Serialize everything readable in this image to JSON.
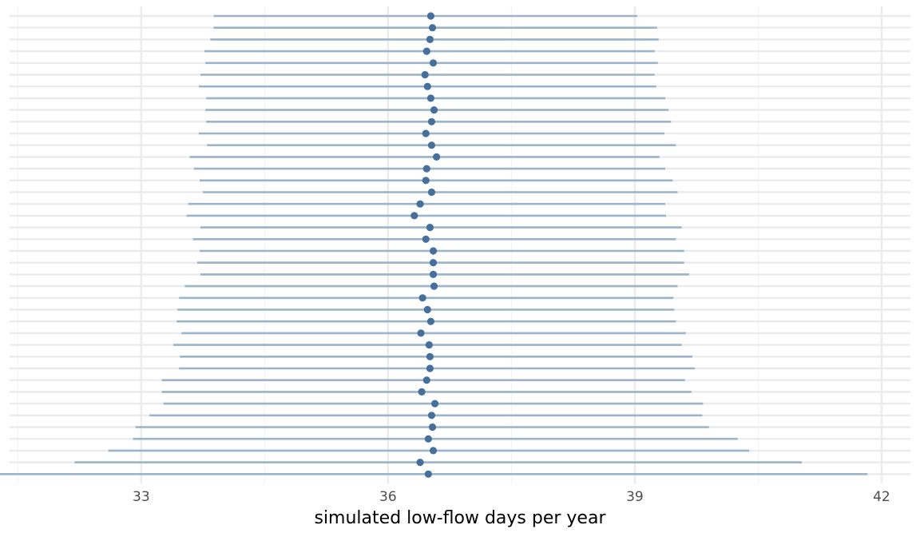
{
  "chart_data": {
    "type": "scatter",
    "subtype": "point-range",
    "title": "",
    "xlabel": "simulated low-flow days per year",
    "ylabel": "",
    "xlim": [
      31.4,
      42.35
    ],
    "x_major_ticks": [
      33,
      36,
      39,
      42
    ],
    "x_minor_ticks": [
      31.5,
      34.5,
      37.5,
      40.5
    ],
    "x_tick_labels": [
      "33",
      "36",
      "39",
      "42"
    ],
    "grid": true,
    "legend": "none",
    "colors": {
      "point": "#46709b",
      "interval": "#9bb4c9",
      "grid_major": "#ebebeb",
      "grid_minor": "#f4f4f4"
    },
    "rows": [
      {
        "mean": 36.52,
        "low": 33.88,
        "high": 39.03
      },
      {
        "mean": 36.54,
        "low": 33.88,
        "high": 39.27
      },
      {
        "mean": 36.51,
        "low": 33.84,
        "high": 39.29
      },
      {
        "mean": 36.47,
        "low": 33.77,
        "high": 39.24
      },
      {
        "mean": 36.55,
        "low": 33.78,
        "high": 39.28
      },
      {
        "mean": 36.45,
        "low": 33.72,
        "high": 39.24
      },
      {
        "mean": 36.48,
        "low": 33.7,
        "high": 39.26
      },
      {
        "mean": 36.52,
        "low": 33.79,
        "high": 39.37
      },
      {
        "mean": 36.56,
        "low": 33.78,
        "high": 39.41
      },
      {
        "mean": 36.53,
        "low": 33.79,
        "high": 39.44
      },
      {
        "mean": 36.46,
        "low": 33.7,
        "high": 39.36
      },
      {
        "mean": 36.53,
        "low": 33.8,
        "high": 39.5
      },
      {
        "mean": 36.59,
        "low": 33.59,
        "high": 39.3
      },
      {
        "mean": 36.47,
        "low": 33.64,
        "high": 39.37
      },
      {
        "mean": 36.46,
        "low": 33.71,
        "high": 39.46
      },
      {
        "mean": 36.53,
        "low": 33.75,
        "high": 39.52
      },
      {
        "mean": 36.39,
        "low": 33.57,
        "high": 39.37
      },
      {
        "mean": 36.32,
        "low": 33.55,
        "high": 39.38
      },
      {
        "mean": 36.51,
        "low": 33.72,
        "high": 39.57
      },
      {
        "mean": 36.46,
        "low": 33.63,
        "high": 39.5
      },
      {
        "mean": 36.55,
        "low": 33.71,
        "high": 39.6
      },
      {
        "mean": 36.55,
        "low": 33.68,
        "high": 39.6
      },
      {
        "mean": 36.55,
        "low": 33.72,
        "high": 39.66
      },
      {
        "mean": 36.56,
        "low": 33.53,
        "high": 39.52
      },
      {
        "mean": 36.42,
        "low": 33.46,
        "high": 39.47
      },
      {
        "mean": 36.48,
        "low": 33.44,
        "high": 39.48
      },
      {
        "mean": 36.52,
        "low": 33.43,
        "high": 39.5
      },
      {
        "mean": 36.4,
        "low": 33.49,
        "high": 39.62
      },
      {
        "mean": 36.5,
        "low": 33.39,
        "high": 39.57
      },
      {
        "mean": 36.51,
        "low": 33.47,
        "high": 39.7
      },
      {
        "mean": 36.51,
        "low": 33.46,
        "high": 39.73
      },
      {
        "mean": 36.47,
        "low": 33.25,
        "high": 39.61
      },
      {
        "mean": 36.41,
        "low": 33.25,
        "high": 39.69
      },
      {
        "mean": 36.57,
        "low": 33.27,
        "high": 39.83
      },
      {
        "mean": 36.53,
        "low": 33.1,
        "high": 39.82
      },
      {
        "mean": 36.54,
        "low": 32.93,
        "high": 39.9
      },
      {
        "mean": 36.49,
        "low": 32.9,
        "high": 40.25
      },
      {
        "mean": 36.55,
        "low": 32.6,
        "high": 40.39
      },
      {
        "mean": 36.39,
        "low": 32.19,
        "high": 41.03
      },
      {
        "mean": 36.49,
        "low": 31.21,
        "high": 41.83
      }
    ]
  }
}
